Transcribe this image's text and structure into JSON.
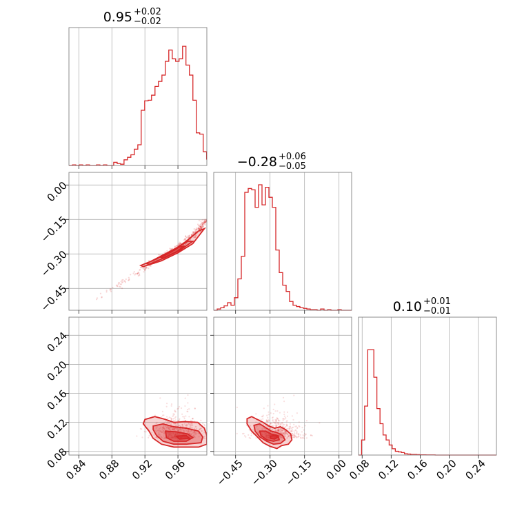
{
  "chart_data": {
    "type": "corner",
    "color": "#d62728",
    "parameters": [
      {
        "title_main": "0.95",
        "title_plus": "+0.02",
        "title_minus": "−0.02",
        "median": 0.95,
        "err_plus": 0.02,
        "err_minus": 0.02,
        "range": [
          0.828,
          0.995
        ],
        "ticks": [
          0.84,
          0.88,
          0.92,
          0.96
        ],
        "tick_labels": [
          "0.84",
          "0.88",
          "0.92",
          "0.96"
        ]
      },
      {
        "title_main": "−0.28",
        "title_plus": "+0.06",
        "title_minus": "−0.05",
        "median": -0.28,
        "err_plus": 0.06,
        "err_minus": 0.05,
        "range": [
          -0.545,
          0.055
        ],
        "ticks": [
          -0.45,
          -0.3,
          -0.15,
          0.0
        ],
        "tick_labels": [
          "−0.45",
          "−0.30",
          "−0.15",
          "0.00"
        ]
      },
      {
        "title_main": "0.10",
        "title_plus": "+0.01",
        "title_minus": "−0.01",
        "median": 0.1,
        "err_plus": 0.01,
        "err_minus": 0.01,
        "range": [
          0.075,
          0.265
        ],
        "ticks": [
          0.08,
          0.12,
          0.16,
          0.2,
          0.24
        ],
        "tick_labels": [
          "0.08",
          "0.12",
          "0.16",
          "0.20",
          "0.24"
        ]
      }
    ],
    "histograms": [
      {
        "param": 0,
        "bins": [
          0.828,
          0.8322,
          0.8363,
          0.8405,
          0.8447,
          0.8488,
          0.853,
          0.8572,
          0.8613,
          0.8655,
          0.8697,
          0.8739,
          0.878,
          0.8822,
          0.8864,
          0.8905,
          0.8947,
          0.8989,
          0.903,
          0.9072,
          0.9114,
          0.9155,
          0.9197,
          0.9239,
          0.928,
          0.9322,
          0.9364,
          0.9406,
          0.9447,
          0.9489,
          0.9531,
          0.9572,
          0.9614,
          0.9656,
          0.9697,
          0.9739,
          0.9781,
          0.9822,
          0.9864,
          0.9906,
          0.9947,
          0.995
        ],
        "counts": [
          0.0,
          0.005,
          0.0,
          0.005,
          0.0,
          0.005,
          0.0,
          0.0,
          0.005,
          0.0,
          0.005,
          0.0,
          0.0,
          0.025,
          0.015,
          0.01,
          0.045,
          0.065,
          0.085,
          0.13,
          0.165,
          0.44,
          0.515,
          0.52,
          0.56,
          0.63,
          0.67,
          0.72,
          0.83,
          0.92,
          0.85,
          0.83,
          0.85,
          0.95,
          0.8,
          0.72,
          0.52,
          0.26,
          0.25,
          0.11,
          0.05
        ]
      },
      {
        "param": 1,
        "bins": [
          -0.545,
          -0.53,
          -0.515,
          -0.5,
          -0.485,
          -0.47,
          -0.455,
          -0.44,
          -0.425,
          -0.41,
          -0.395,
          -0.38,
          -0.365,
          -0.35,
          -0.335,
          -0.32,
          -0.305,
          -0.29,
          -0.275,
          -0.26,
          -0.245,
          -0.23,
          -0.215,
          -0.2,
          -0.185,
          -0.17,
          -0.155,
          -0.14,
          -0.125,
          -0.11,
          -0.095,
          -0.08,
          -0.065,
          -0.05,
          -0.035,
          -0.02,
          -0.005,
          0.01,
          0.025,
          0.04,
          0.055
        ],
        "counts": [
          0.0,
          0.01,
          0.02,
          0.035,
          0.06,
          0.04,
          0.1,
          0.25,
          0.43,
          0.94,
          0.97,
          0.96,
          0.82,
          1.0,
          0.84,
          0.98,
          0.9,
          0.82,
          0.48,
          0.3,
          0.2,
          0.15,
          0.07,
          0.04,
          0.03,
          0.02,
          0.015,
          0.01,
          0.005,
          0.005,
          0.0,
          0.01,
          0.0,
          0.005,
          0.0,
          0.0,
          0.005,
          0.0,
          0.0,
          0.0
        ]
      },
      {
        "param": 2,
        "bins": [
          0.075,
          0.0792,
          0.0834,
          0.0877,
          0.0919,
          0.0961,
          0.1003,
          0.1046,
          0.1088,
          0.113,
          0.1172,
          0.1214,
          0.1257,
          0.1299,
          0.1341,
          0.1383,
          0.1426,
          0.1468,
          0.151,
          0.1552,
          0.1594,
          0.1637,
          0.1679,
          0.1721,
          0.1763,
          0.1806,
          0.1848,
          0.189,
          0.1932,
          0.1974,
          0.2017,
          0.2059,
          0.2101,
          0.2143,
          0.2186,
          0.2228,
          0.227,
          0.2312,
          0.2354,
          0.2397,
          0.2439,
          0.2481,
          0.2523,
          0.2566,
          0.2608,
          0.265
        ],
        "counts": [
          0.0,
          0.12,
          0.39,
          0.84,
          0.84,
          0.62,
          0.37,
          0.25,
          0.16,
          0.12,
          0.08,
          0.05,
          0.03,
          0.025,
          0.02,
          0.01,
          0.008,
          0.005,
          0.005,
          0.003,
          0.002,
          0.002,
          0.001,
          0.001,
          0.001,
          0.0,
          0.0,
          0.0,
          0.0,
          0.0,
          0.0,
          0.0,
          0.0,
          0.0,
          0.0,
          0.0,
          0.0,
          0.0,
          0.0,
          0.0,
          0.0,
          0.0,
          0.0,
          0.0,
          0.0
        ]
      }
    ],
    "pairs": [
      {
        "x_param": 0,
        "y_param": 1,
        "ridge": [
          [
            0.86,
            -0.5
          ],
          [
            0.88,
            -0.455
          ],
          [
            0.9,
            -0.41
          ],
          [
            0.92,
            -0.36
          ],
          [
            0.94,
            -0.315
          ],
          [
            0.96,
            -0.27
          ],
          [
            0.98,
            -0.215
          ],
          [
            0.995,
            -0.15
          ]
        ],
        "contours": [
          [
            [
              0.918,
              -0.355
            ],
            [
              0.94,
              -0.33
            ],
            [
              0.96,
              -0.295
            ],
            [
              0.978,
              -0.255
            ],
            [
              0.992,
              -0.19
            ],
            [
              0.985,
              -0.2
            ],
            [
              0.97,
              -0.245
            ],
            [
              0.952,
              -0.29
            ],
            [
              0.932,
              -0.325
            ],
            [
              0.915,
              -0.35
            ]
          ],
          [
            [
              0.925,
              -0.345
            ],
            [
              0.945,
              -0.315
            ],
            [
              0.962,
              -0.285
            ],
            [
              0.978,
              -0.245
            ],
            [
              0.972,
              -0.245
            ],
            [
              0.955,
              -0.28
            ],
            [
              0.938,
              -0.312
            ],
            [
              0.922,
              -0.342
            ]
          ],
          [
            [
              0.942,
              -0.318
            ],
            [
              0.958,
              -0.29
            ],
            [
              0.968,
              -0.265
            ],
            [
              0.962,
              -0.27
            ],
            [
              0.95,
              -0.295
            ],
            [
              0.94,
              -0.315
            ]
          ]
        ]
      },
      {
        "x_param": 0,
        "y_param": 2,
        "center": [
          0.96,
          0.1
        ],
        "contours": [
          [
            [
              0.92,
              0.124
            ],
            [
              0.932,
              0.128
            ],
            [
              0.945,
              0.124
            ],
            [
              0.955,
              0.12
            ],
            [
              0.968,
              0.121
            ],
            [
              0.984,
              0.12
            ],
            [
              0.992,
              0.112
            ],
            [
              0.995,
              0.102
            ],
            [
              0.995,
              0.09
            ],
            [
              0.985,
              0.086
            ],
            [
              0.97,
              0.086
            ],
            [
              0.955,
              0.086
            ],
            [
              0.94,
              0.09
            ],
            [
              0.93,
              0.098
            ],
            [
              0.925,
              0.108
            ],
            [
              0.918,
              0.118
            ]
          ],
          [
            [
              0.93,
              0.115
            ],
            [
              0.942,
              0.118
            ],
            [
              0.955,
              0.114
            ],
            [
              0.97,
              0.112
            ],
            [
              0.985,
              0.108
            ],
            [
              0.99,
              0.1
            ],
            [
              0.988,
              0.092
            ],
            [
              0.97,
              0.09
            ],
            [
              0.955,
              0.09
            ],
            [
              0.942,
              0.094
            ],
            [
              0.934,
              0.102
            ],
            [
              0.93,
              0.11
            ]
          ],
          [
            [
              0.945,
              0.108
            ],
            [
              0.958,
              0.107
            ],
            [
              0.972,
              0.104
            ],
            [
              0.978,
              0.099
            ],
            [
              0.97,
              0.094
            ],
            [
              0.955,
              0.094
            ],
            [
              0.946,
              0.099
            ]
          ],
          [
            [
              0.958,
              0.101
            ],
            [
              0.97,
              0.102
            ],
            [
              0.974,
              0.098
            ],
            [
              0.962,
              0.097
            ]
          ]
        ]
      },
      {
        "x_param": 1,
        "y_param": 2,
        "center": [
          -0.27,
          0.1
        ],
        "contours": [
          [
            [
              -0.4,
              0.125
            ],
            [
              -0.38,
              0.128
            ],
            [
              -0.355,
              0.124
            ],
            [
              -0.33,
              0.12
            ],
            [
              -0.305,
              0.115
            ],
            [
              -0.28,
              0.112
            ],
            [
              -0.255,
              0.114
            ],
            [
              -0.232,
              0.11
            ],
            [
              -0.21,
              0.104
            ],
            [
              -0.205,
              0.096
            ],
            [
              -0.22,
              0.09
            ],
            [
              -0.25,
              0.088
            ],
            [
              -0.27,
              0.084
            ],
            [
              -0.3,
              0.087
            ],
            [
              -0.33,
              0.092
            ],
            [
              -0.355,
              0.1
            ],
            [
              -0.38,
              0.108
            ],
            [
              -0.4,
              0.118
            ]
          ],
          [
            [
              -0.37,
              0.116
            ],
            [
              -0.345,
              0.118
            ],
            [
              -0.32,
              0.113
            ],
            [
              -0.295,
              0.108
            ],
            [
              -0.27,
              0.106
            ],
            [
              -0.245,
              0.102
            ],
            [
              -0.235,
              0.096
            ],
            [
              -0.255,
              0.091
            ],
            [
              -0.285,
              0.09
            ],
            [
              -0.315,
              0.094
            ],
            [
              -0.345,
              0.1
            ],
            [
              -0.365,
              0.108
            ]
          ],
          [
            [
              -0.345,
              0.108
            ],
            [
              -0.32,
              0.108
            ],
            [
              -0.295,
              0.104
            ],
            [
              -0.265,
              0.102
            ],
            [
              -0.26,
              0.096
            ],
            [
              -0.285,
              0.094
            ],
            [
              -0.315,
              0.096
            ],
            [
              -0.34,
              0.102
            ]
          ],
          [
            [
              -0.3,
              0.101
            ],
            [
              -0.28,
              0.102
            ],
            [
              -0.265,
              0.1
            ],
            [
              -0.28,
              0.097
            ],
            [
              -0.298,
              0.098
            ]
          ]
        ]
      }
    ]
  }
}
